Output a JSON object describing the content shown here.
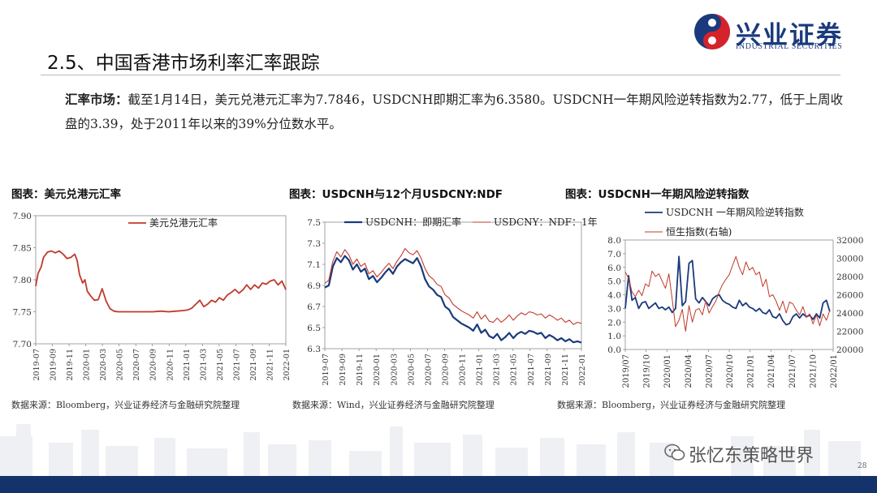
{
  "header": {
    "brand_cn": "兴业证券",
    "brand_en": "INDUSTRIAL SECURITIES",
    "page_title": "2.5、中国香港市场利率汇率跟踪"
  },
  "summary": {
    "lead": "汇率市场：",
    "text": "截至1月14日，美元兑港元汇率为7.7846，USDCNH即期汇率为6.3580。USDCNH一年期风险逆转指数为2.77，低于上周收盘的3.39，处于2011年以来的39%分位数水平。"
  },
  "colors": {
    "navy": "#1a3a7c",
    "red": "#c0392b",
    "footer": "#15336b"
  },
  "chart_data": [
    {
      "type": "line",
      "title": "图表：美元兑港元汇率",
      "source": "数据来源：Bloomberg，兴业证券经济与金融研究院整理",
      "ylim": [
        7.7,
        7.9
      ],
      "yticks": [
        "7.90",
        "7.85",
        "7.80",
        "7.75",
        "7.70"
      ],
      "xticks": [
        "2019-07",
        "2019-09",
        "2019-11",
        "2020-01",
        "2020-03",
        "2020-05",
        "2020-07",
        "2020-09",
        "2020-11",
        "2021-01",
        "2021-03",
        "2021-05",
        "2021-07",
        "2021-09",
        "2021-11",
        "2022-01"
      ],
      "series": [
        {
          "name": "美元兑港元汇率",
          "color": "#c0392b",
          "x": [
            0,
            0.3,
            0.7,
            1,
            1.5,
            2,
            2.5,
            3,
            3.5,
            4,
            4.5,
            5,
            5.3,
            5.6,
            6,
            6.3,
            6.6,
            7,
            7.5,
            8,
            8.5,
            9,
            9.5,
            10,
            10.5,
            11,
            12,
            13,
            14,
            15,
            16,
            17,
            18,
            19,
            19.5,
            20,
            20.5,
            21,
            21.5,
            22,
            22.5,
            23,
            23.5,
            24,
            24.5,
            25,
            25.5,
            26,
            26.5,
            27,
            27.5,
            28,
            28.5,
            29,
            29.5,
            30,
            30.5,
            31,
            31.5,
            32
          ],
          "y": [
            7.79,
            7.81,
            7.82,
            7.835,
            7.843,
            7.845,
            7.842,
            7.845,
            7.84,
            7.833,
            7.835,
            7.84,
            7.83,
            7.808,
            7.795,
            7.8,
            7.782,
            7.775,
            7.768,
            7.769,
            7.786,
            7.767,
            7.755,
            7.751,
            7.75,
            7.75,
            7.75,
            7.75,
            7.75,
            7.75,
            7.751,
            7.75,
            7.751,
            7.752,
            7.753,
            7.756,
            7.762,
            7.768,
            7.758,
            7.762,
            7.768,
            7.765,
            7.772,
            7.768,
            7.776,
            7.78,
            7.785,
            7.779,
            7.784,
            7.792,
            7.785,
            7.792,
            7.787,
            7.795,
            7.793,
            7.798,
            7.8,
            7.792,
            7.798,
            7.7846
          ]
        }
      ]
    },
    {
      "type": "line",
      "title": "图表：USDCNH与12个月USDCNY:NDF",
      "source": "数据来源：Wind，兴业证券经济与金融研究院整理",
      "ylim": [
        6.3,
        7.5
      ],
      "yticks": [
        "7.5",
        "7.3",
        "7.1",
        "6.9",
        "6.7",
        "6.5",
        "6.3"
      ],
      "xticks": [
        "2019-07",
        "2019-09",
        "2019-11",
        "2020-01",
        "2020-03",
        "2020-05",
        "2020-07",
        "2020-09",
        "2020-11",
        "2021-01",
        "2021-03",
        "2021-05",
        "2021-07",
        "2021-09",
        "2021-11",
        "2022-01"
      ],
      "series": [
        {
          "name": "USDCNH：即期汇率",
          "color": "#1a3a7c",
          "x": [
            0,
            0.5,
            1,
            1.5,
            2,
            2.5,
            3,
            3.5,
            4,
            4.5,
            5,
            5.5,
            6,
            6.5,
            7,
            7.5,
            8,
            8.5,
            9,
            9.5,
            10,
            10.5,
            11,
            11.5,
            12,
            12.5,
            13,
            13.5,
            14,
            14.5,
            15,
            15.5,
            16,
            16.5,
            17,
            17.5,
            18,
            18.5,
            19,
            19.5,
            20,
            20.5,
            21,
            21.5,
            22,
            22.5,
            23,
            23.5,
            24,
            24.5,
            25,
            25.5,
            26,
            26.5,
            27,
            27.5,
            28,
            28.5,
            29,
            29.5,
            30,
            30.5,
            31,
            31.5,
            32
          ],
          "y": [
            6.88,
            6.9,
            7.08,
            7.16,
            7.12,
            7.18,
            7.14,
            7.05,
            7.1,
            7.03,
            7.06,
            6.96,
            6.99,
            6.93,
            6.97,
            7.02,
            7.06,
            7.01,
            7.08,
            7.12,
            7.15,
            7.13,
            7.11,
            7.16,
            7.08,
            6.96,
            6.89,
            6.86,
            6.81,
            6.79,
            6.7,
            6.67,
            6.6,
            6.57,
            6.54,
            6.52,
            6.5,
            6.47,
            6.53,
            6.45,
            6.48,
            6.42,
            6.4,
            6.44,
            6.38,
            6.41,
            6.45,
            6.4,
            6.44,
            6.46,
            6.44,
            6.47,
            6.46,
            6.44,
            6.45,
            6.4,
            6.43,
            6.41,
            6.38,
            6.4,
            6.37,
            6.39,
            6.36,
            6.37,
            6.358
          ]
        },
        {
          "name": "USDCNY：NDF：1年",
          "color": "#c0392b",
          "x": [
            0,
            0.5,
            1,
            1.5,
            2,
            2.5,
            3,
            3.5,
            4,
            4.5,
            5,
            5.5,
            6,
            6.5,
            7,
            7.5,
            8,
            8.5,
            9,
            9.5,
            10,
            10.5,
            11,
            11.5,
            12,
            12.5,
            13,
            13.5,
            14,
            14.5,
            15,
            15.5,
            16,
            16.5,
            17,
            17.5,
            18,
            18.5,
            19,
            19.5,
            20,
            20.5,
            21,
            21.5,
            22,
            22.5,
            23,
            23.5,
            24,
            24.5,
            25,
            25.5,
            26,
            26.5,
            27,
            27.5,
            28,
            28.5,
            29,
            29.5,
            30,
            30.5,
            31,
            31.5,
            32
          ],
          "y": [
            6.92,
            6.95,
            7.13,
            7.22,
            7.17,
            7.24,
            7.19,
            7.1,
            7.15,
            7.08,
            7.11,
            7.01,
            7.04,
            6.98,
            7.02,
            7.07,
            7.11,
            7.06,
            7.13,
            7.18,
            7.25,
            7.21,
            7.19,
            7.23,
            7.16,
            7.06,
            6.99,
            6.96,
            6.91,
            6.89,
            6.81,
            6.78,
            6.72,
            6.69,
            6.66,
            6.64,
            6.62,
            6.59,
            6.65,
            6.58,
            6.62,
            6.56,
            6.55,
            6.59,
            6.55,
            6.58,
            6.62,
            6.57,
            6.61,
            6.64,
            6.62,
            6.65,
            6.64,
            6.62,
            6.63,
            6.59,
            6.62,
            6.6,
            6.57,
            6.59,
            6.55,
            6.57,
            6.53,
            6.55,
            6.54
          ]
        }
      ]
    },
    {
      "type": "line",
      "title": "图表：USDCNH一年期风险逆转指数",
      "source": "数据来源：Bloomberg，兴业证券经济与金融研究院整理",
      "ylim": [
        0,
        8
      ],
      "y2lim": [
        20000,
        32000
      ],
      "yticks": [
        "8.0",
        "7.0",
        "6.0",
        "5.0",
        "4.0",
        "3.0",
        "2.0",
        "1.0",
        "0.0"
      ],
      "y2ticks": [
        "32000",
        "30000",
        "28000",
        "26000",
        "24000",
        "22000",
        "20000"
      ],
      "xticks": [
        "2019/07",
        "2019/10",
        "2020/01",
        "2020/04",
        "2020/07",
        "2020/10",
        "2021/01",
        "2021/04",
        "2021/07",
        "2021/10",
        "2022/01"
      ],
      "series": [
        {
          "name": "USDCNH 一年期风险逆转指数",
          "color": "#1a3a7c",
          "axis": "left",
          "x": [
            0,
            0.5,
            1,
            1.5,
            2,
            2.5,
            3,
            3.5,
            4,
            4.5,
            5,
            5.5,
            6,
            6.5,
            7,
            7.5,
            8,
            8.5,
            9,
            9.5,
            10,
            10.5,
            11,
            11.5,
            12,
            12.5,
            13,
            13.5,
            14,
            14.5,
            15,
            15.5,
            16,
            16.5,
            17,
            17.5,
            18,
            18.5,
            19,
            19.5,
            20,
            20.5,
            21,
            21.5,
            22,
            22.5,
            23,
            23.5,
            24,
            24.5,
            25,
            25.5,
            26,
            26.5,
            27,
            27.5,
            28,
            28.5,
            29,
            29.5,
            30,
            30.5
          ],
          "y": [
            3.0,
            5.4,
            3.6,
            3.8,
            3.0,
            3.4,
            3.5,
            3.0,
            3.2,
            3.4,
            3.0,
            3.1,
            2.9,
            3.1,
            2.7,
            3.0,
            6.8,
            3.2,
            3.5,
            6.3,
            6.5,
            3.7,
            3.4,
            3.8,
            3.5,
            3.2,
            3.7,
            3.9,
            4.0,
            3.6,
            3.4,
            3.3,
            3.1,
            3.0,
            3.6,
            3.2,
            3.4,
            3.1,
            3.0,
            2.8,
            3.0,
            2.7,
            2.6,
            2.9,
            2.4,
            2.3,
            2.6,
            2.1,
            1.8,
            1.9,
            2.4,
            2.6,
            2.3,
            2.6,
            2.4,
            2.5,
            2.2,
            2.6,
            2.3,
            3.4,
            3.6,
            2.77
          ]
        },
        {
          "name": "恒生指数(右轴)",
          "color": "#c0392b",
          "axis": "right",
          "x": [
            0,
            0.5,
            1,
            1.5,
            2,
            2.5,
            3,
            3.5,
            4,
            4.5,
            5,
            5.5,
            6,
            6.5,
            7,
            7.5,
            8,
            8.5,
            9,
            9.5,
            10,
            10.5,
            11,
            11.5,
            12,
            12.5,
            13,
            13.5,
            14,
            14.5,
            15,
            15.5,
            16,
            16.5,
            17,
            17.5,
            18,
            18.5,
            19,
            19.5,
            20,
            20.5,
            21,
            21.5,
            22,
            22.5,
            23,
            23.5,
            24,
            24.5,
            25,
            25.5,
            26,
            26.5,
            27,
            27.5,
            28,
            28.5,
            29,
            29.5,
            30,
            30.5
          ],
          "y": [
            28500,
            27800,
            26300,
            25800,
            26500,
            25900,
            27200,
            26900,
            28600,
            28000,
            28300,
            27500,
            26700,
            28300,
            25500,
            22500,
            23200,
            24400,
            22000,
            24800,
            23000,
            24300,
            24500,
            23800,
            25300,
            24000,
            24700,
            25300,
            26300,
            27100,
            27700,
            28200,
            29200,
            30200,
            29000,
            28200,
            29600,
            28700,
            29000,
            28200,
            28500,
            26900,
            27700,
            25800,
            26000,
            25300,
            24300,
            25300,
            24000,
            25200,
            25000,
            24300,
            23800,
            24700,
            23500,
            23900,
            22800,
            23800,
            22600,
            23900,
            23200,
            24300
          ]
        }
      ]
    }
  ],
  "footer": {
    "watermark": "张忆东策略世界",
    "page_number": "28"
  }
}
